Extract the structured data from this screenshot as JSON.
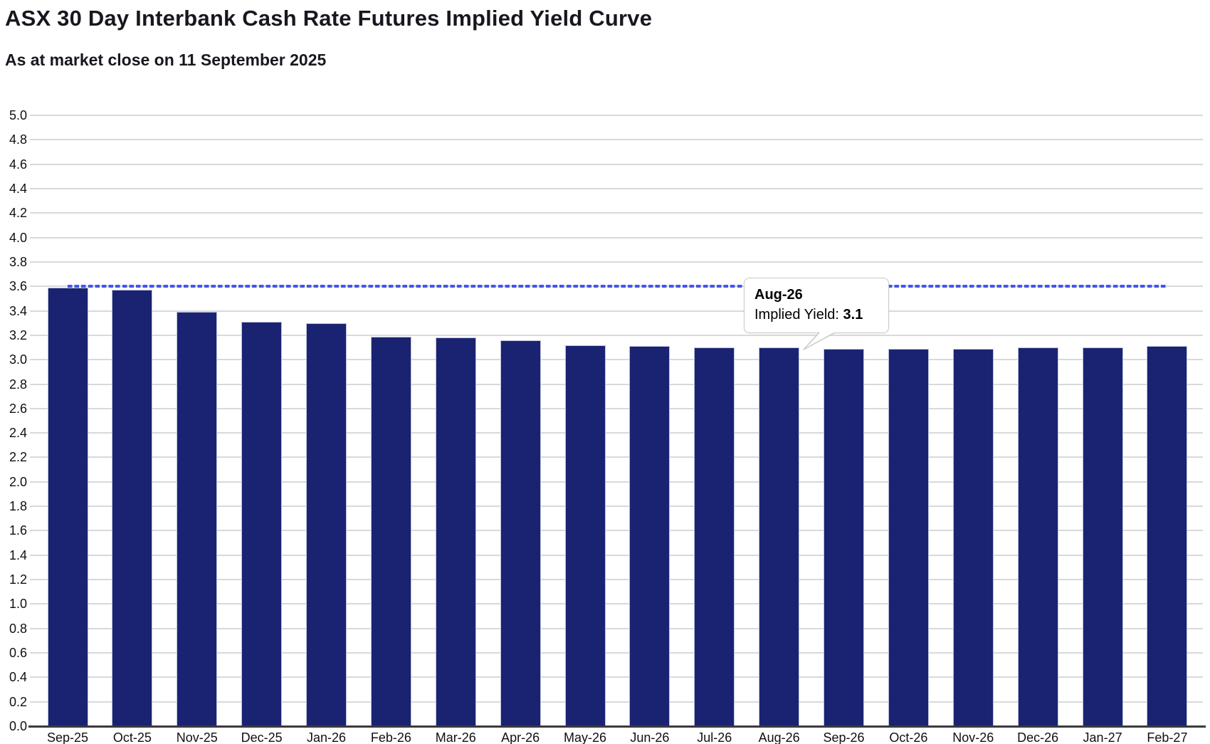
{
  "page": {
    "background": "#ffffff"
  },
  "header": {
    "title": "ASX 30 Day Interbank Cash Rate Futures Implied Yield Curve",
    "subtitle": "As at market close on 11 September 2025"
  },
  "colors": {
    "bar_fill": "#1a2371",
    "bar_border": "#bcc1d8",
    "dashed_reference_line": "#4355ec",
    "gridline": "#d9d9dc",
    "axis_line": "#39393f",
    "text": "#101014",
    "tooltip_background": "#ffffff",
    "tooltip_border": "#c9c9c9"
  },
  "chart_data": {
    "type": "bar",
    "title": "ASX 30 Day Interbank Cash Rate Futures Implied Yield Curve",
    "subtitle": "As at market close on 11 September 2025",
    "xlabel": "",
    "ylabel": "",
    "categories": [
      "Sep-25",
      "Oct-25",
      "Nov-25",
      "Dec-25",
      "Jan-26",
      "Feb-26",
      "Mar-26",
      "Apr-26",
      "May-26",
      "Jun-26",
      "Jul-26",
      "Aug-26",
      "Sep-26",
      "Oct-26",
      "Nov-26",
      "Dec-26",
      "Jan-27",
      "Feb-27"
    ],
    "values": [
      3.59,
      3.57,
      3.39,
      3.31,
      3.3,
      3.19,
      3.18,
      3.16,
      3.12,
      3.11,
      3.1,
      3.1,
      3.09,
      3.09,
      3.09,
      3.1,
      3.1,
      3.11
    ],
    "series_name": "Implied Yield",
    "ylim": [
      0.0,
      5.0
    ],
    "ytick_step": 0.2,
    "yticks": [
      "5.0",
      "4.8",
      "4.6",
      "4.4",
      "4.2",
      "4.0",
      "3.8",
      "3.6",
      "3.4",
      "3.2",
      "3.0",
      "2.8",
      "2.6",
      "2.4",
      "2.2",
      "2.0",
      "1.8",
      "1.6",
      "1.4",
      "1.2",
      "1.0",
      "0.8",
      "0.6",
      "0.4",
      "0.2",
      "0.0"
    ],
    "grid": true,
    "legend": "none",
    "reference_line": {
      "value": 3.6,
      "style": "dashed",
      "color": "#4355ec"
    },
    "tooltip": {
      "category": "Aug-26",
      "label": "Implied Yield: ",
      "value": "3.1"
    }
  }
}
